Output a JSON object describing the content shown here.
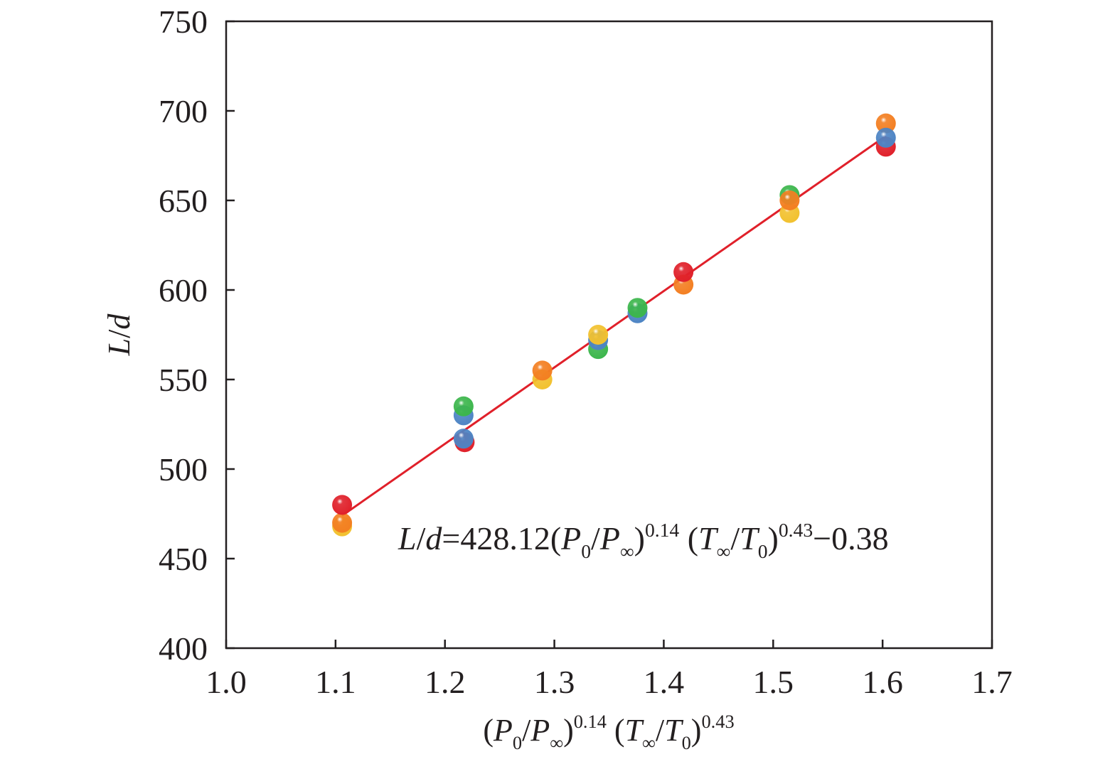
{
  "chart_data": {
    "type": "scatter",
    "title": "",
    "xlabel": {
      "parts": [
        {
          "t": "(",
          "s": "n"
        },
        {
          "t": "P",
          "s": "i"
        },
        {
          "t": "0",
          "s": "sub"
        },
        {
          "t": "/",
          "s": "n"
        },
        {
          "t": "P",
          "s": "i"
        },
        {
          "t": "∞",
          "s": "sub"
        },
        {
          "t": ")",
          "s": "n"
        },
        {
          "t": "0.14",
          "s": "sup"
        },
        {
          "t": " (",
          "s": "n"
        },
        {
          "t": "T",
          "s": "i"
        },
        {
          "t": "∞",
          "s": "sub"
        },
        {
          "t": "/",
          "s": "n"
        },
        {
          "t": "T",
          "s": "i"
        },
        {
          "t": "0",
          "s": "sub"
        },
        {
          "t": ")",
          "s": "n"
        },
        {
          "t": "0.43",
          "s": "sup"
        }
      ]
    },
    "ylabel": {
      "parts": [
        {
          "t": "L",
          "s": "i"
        },
        {
          "t": "/",
          "s": "n"
        },
        {
          "t": "d",
          "s": "i"
        }
      ]
    },
    "xlim": [
      1.0,
      1.7
    ],
    "ylim": [
      400,
      750
    ],
    "x_ticks": [
      "1.0",
      "1.1",
      "1.2",
      "1.3",
      "1.4",
      "1.5",
      "1.6",
      "1.7"
    ],
    "y_ticks": [
      "400",
      "450",
      "500",
      "550",
      "600",
      "650",
      "700",
      "750"
    ],
    "grid": false,
    "colors": {
      "yellow": "#f2c12e",
      "orange": "#f37f22",
      "blue": "#4d84c4",
      "green": "#3cb64c",
      "red": "#e0202a",
      "fit_line": "#e0202a",
      "axis": "#231f20"
    },
    "points": [
      {
        "x": 1.106,
        "y": 468,
        "color": "yellow"
      },
      {
        "x": 1.106,
        "y": 470,
        "color": "orange"
      },
      {
        "x": 1.106,
        "y": 480,
        "color": "red"
      },
      {
        "x": 1.217,
        "y": 530,
        "color": "blue"
      },
      {
        "x": 1.217,
        "y": 535,
        "color": "green"
      },
      {
        "x": 1.218,
        "y": 515,
        "color": "red"
      },
      {
        "x": 1.217,
        "y": 517,
        "color": "blue"
      },
      {
        "x": 1.289,
        "y": 550,
        "color": "yellow"
      },
      {
        "x": 1.289,
        "y": 555,
        "color": "orange"
      },
      {
        "x": 1.34,
        "y": 567,
        "color": "green"
      },
      {
        "x": 1.34,
        "y": 572,
        "color": "blue"
      },
      {
        "x": 1.34,
        "y": 575,
        "color": "yellow"
      },
      {
        "x": 1.376,
        "y": 587,
        "color": "blue"
      },
      {
        "x": 1.376,
        "y": 590,
        "color": "green"
      },
      {
        "x": 1.418,
        "y": 603,
        "color": "orange"
      },
      {
        "x": 1.418,
        "y": 610,
        "color": "red"
      },
      {
        "x": 1.515,
        "y": 643,
        "color": "yellow"
      },
      {
        "x": 1.515,
        "y": 653,
        "color": "green"
      },
      {
        "x": 1.515,
        "y": 650,
        "color": "orange"
      },
      {
        "x": 1.603,
        "y": 680,
        "color": "red"
      },
      {
        "x": 1.603,
        "y": 693,
        "color": "orange"
      },
      {
        "x": 1.603,
        "y": 685,
        "color": "blue"
      }
    ],
    "fit_line": {
      "x": [
        1.106,
        1.603
      ],
      "y": [
        474,
        686
      ]
    },
    "annotation": {
      "parts": [
        {
          "t": "L",
          "s": "i"
        },
        {
          "t": "/",
          "s": "n"
        },
        {
          "t": "d",
          "s": "i"
        },
        {
          "t": "=428.12(",
          "s": "n"
        },
        {
          "t": "P",
          "s": "i"
        },
        {
          "t": "0",
          "s": "sub"
        },
        {
          "t": "/",
          "s": "n"
        },
        {
          "t": "P",
          "s": "i"
        },
        {
          "t": "∞",
          "s": "sub"
        },
        {
          "t": ")",
          "s": "n"
        },
        {
          "t": "0.14",
          "s": "sup"
        },
        {
          "t": " (",
          "s": "n"
        },
        {
          "t": "T",
          "s": "i"
        },
        {
          "t": "∞",
          "s": "sub"
        },
        {
          "t": "/",
          "s": "n"
        },
        {
          "t": "T",
          "s": "i"
        },
        {
          "t": "0",
          "s": "sub"
        },
        {
          "t": ")",
          "s": "n"
        },
        {
          "t": "0.43",
          "s": "sup"
        },
        {
          "t": "−0.38",
          "s": "n"
        }
      ]
    }
  }
}
